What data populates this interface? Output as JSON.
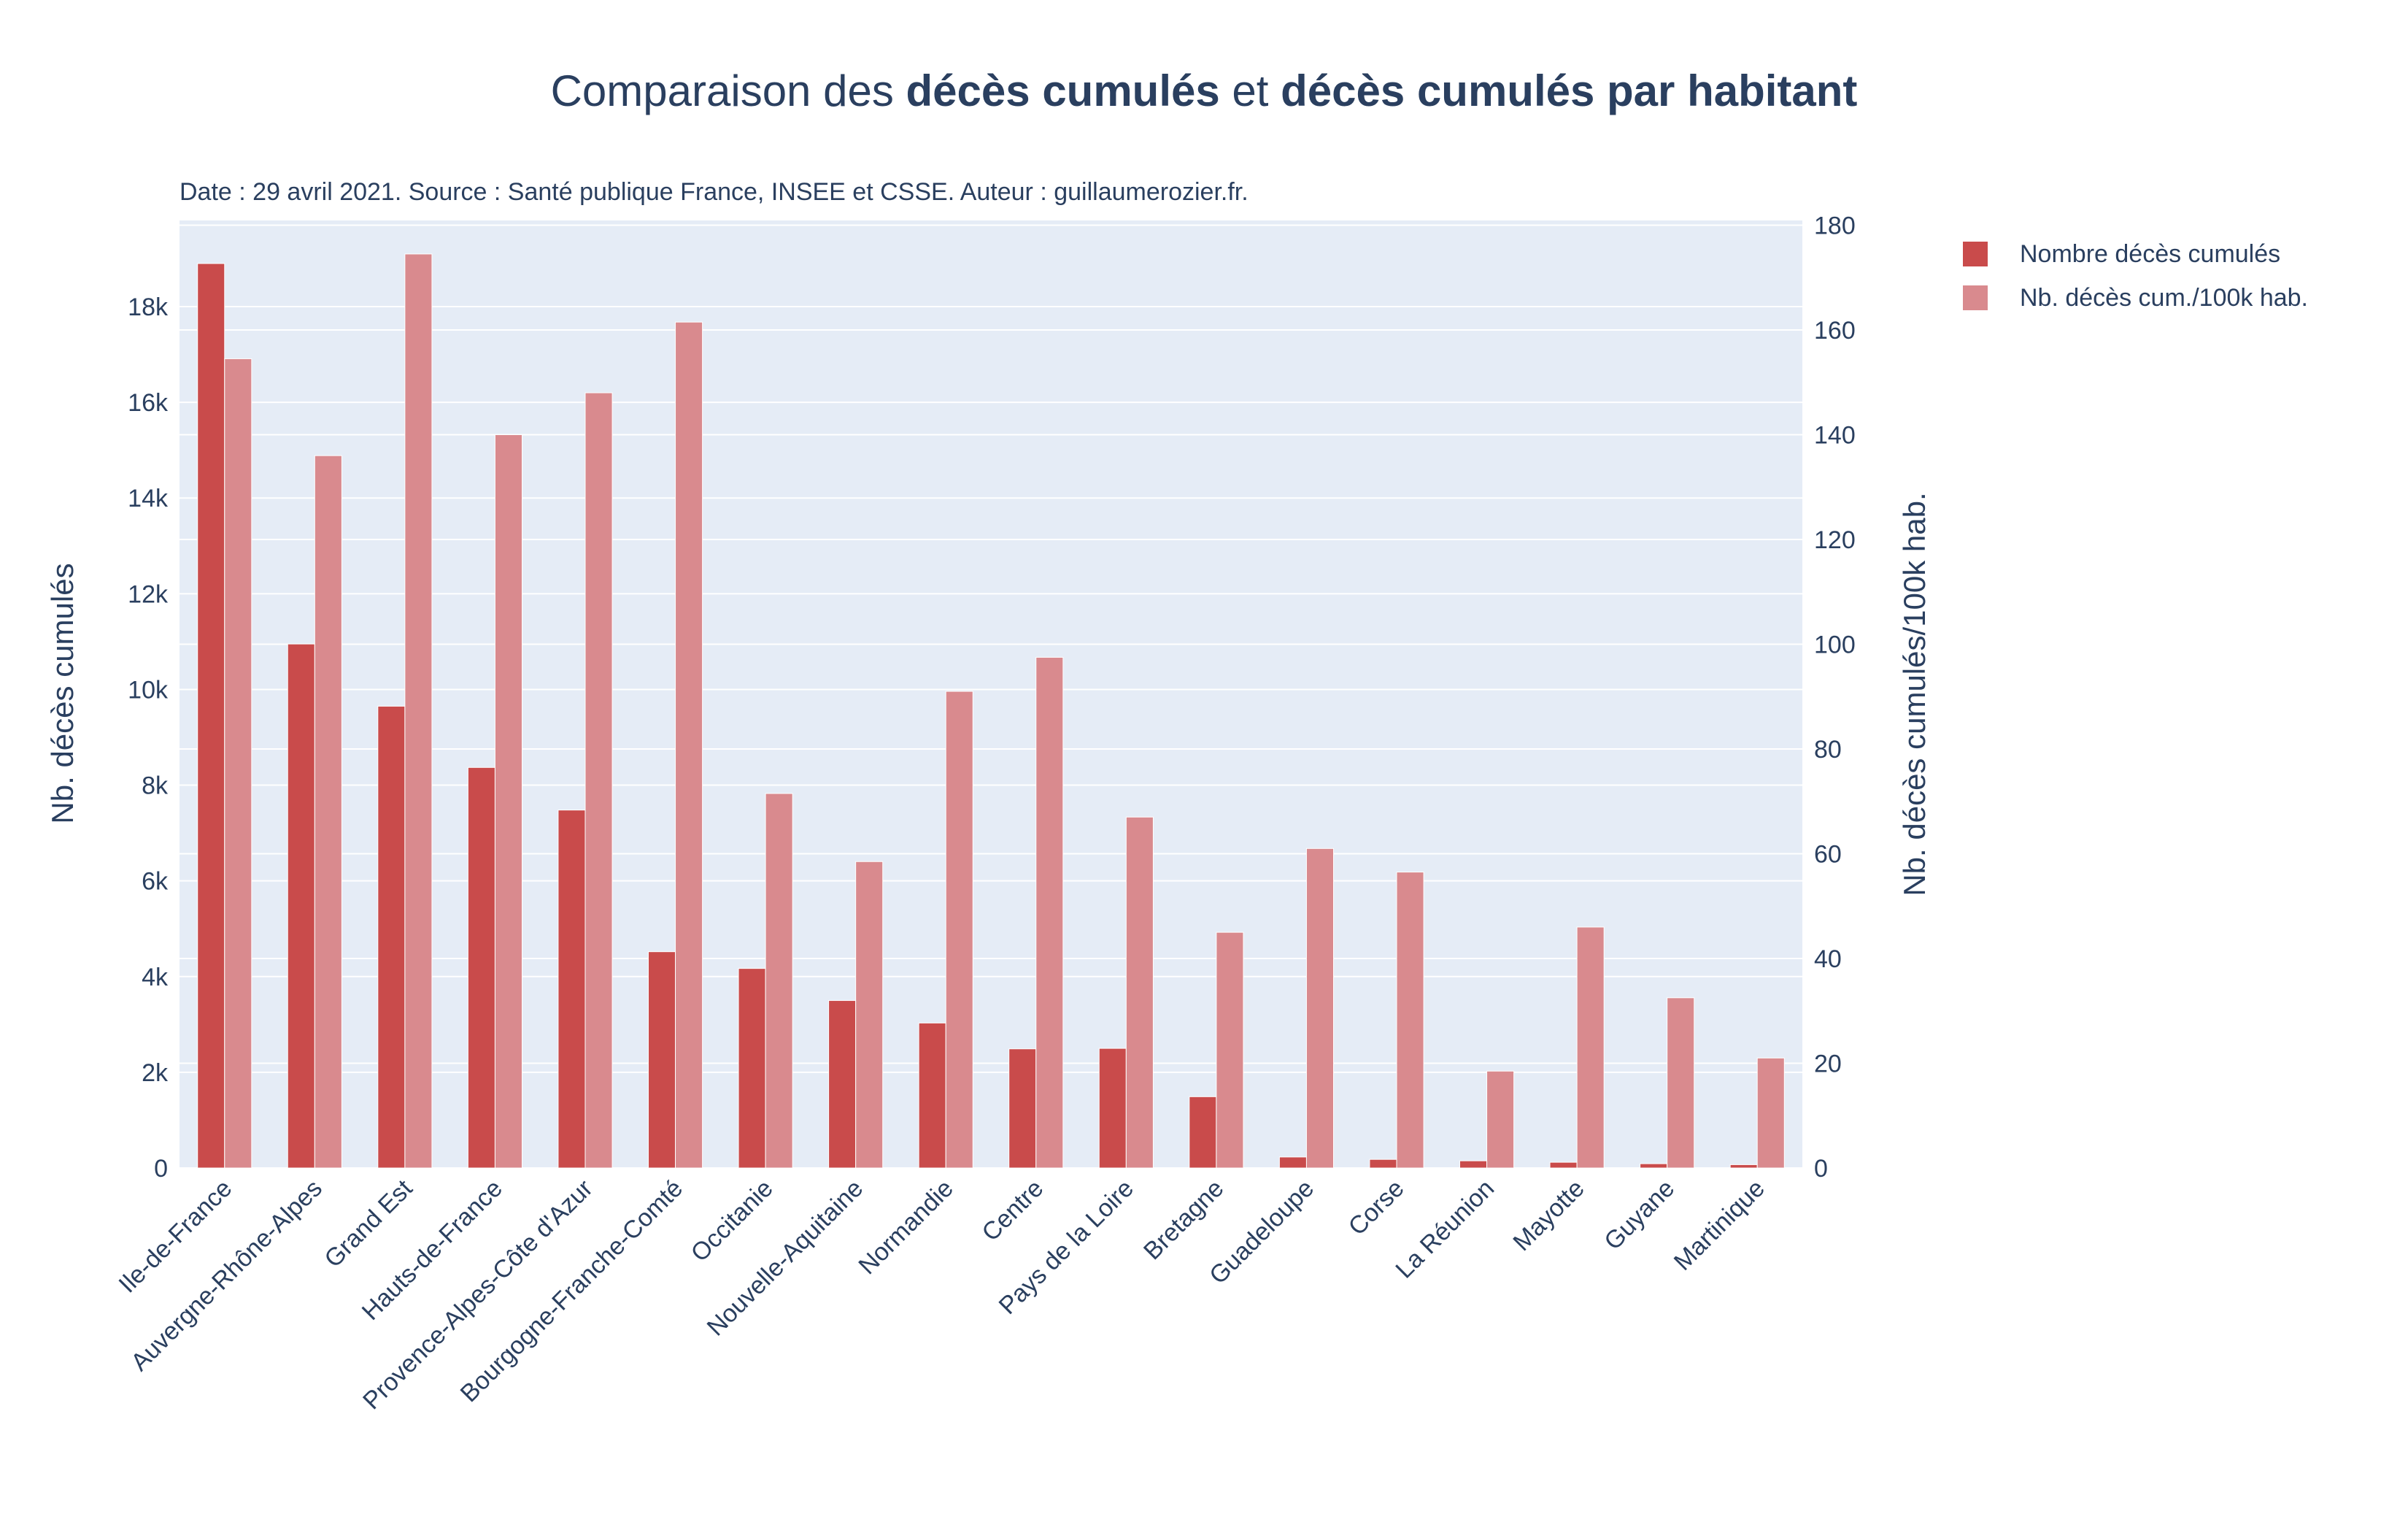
{
  "title_parts": {
    "p1": "Comparaison des ",
    "b1": "décès cumulés",
    "p2": " et ",
    "b2": "décès cumulés par habitant"
  },
  "subtitle": "Date : 29 avril 2021. Source : Santé publique France, INSEE et CSSE. Auteur : guillaumerozier.fr.",
  "legend": [
    {
      "label": "Nombre décès cumulés",
      "color": "#c94b4b"
    },
    {
      "label": "Nb. décès cum./100k hab.",
      "color": "#d98a8e"
    }
  ],
  "chart_data": {
    "type": "bar",
    "categories": [
      "Ile-de-France",
      "Auvergne-Rhône-Alpes",
      "Grand Est",
      "Hauts-de-France",
      "Provence-Alpes-Côte d'Azur",
      "Bourgogne-Franche-Comté",
      "Occitanie",
      "Nouvelle-Aquitaine",
      "Normandie",
      "Centre",
      "Pays de la Loire",
      "Bretagne",
      "Guadeloupe",
      "Corse",
      "La Réunion",
      "Mayotte",
      "Guyane",
      "Martinique"
    ],
    "series": [
      {
        "name": "Nombre décès cumulés",
        "axis": "left",
        "color": "#c94b4b",
        "values": [
          18900,
          10950,
          9650,
          8370,
          7480,
          4520,
          4170,
          3500,
          3030,
          2490,
          2500,
          1490,
          230,
          180,
          150,
          120,
          90,
          70
        ]
      },
      {
        "name": "Nb. décès cum./100k hab.",
        "axis": "right",
        "color": "#d98a8e",
        "values": [
          154.5,
          136,
          174.5,
          140,
          148,
          161.5,
          71.5,
          58.5,
          91,
          97.5,
          67,
          45,
          61,
          56.5,
          18.5,
          46,
          32.5,
          21
        ]
      }
    ],
    "ylabel": "Nb. décès cumulés",
    "ylabel_right": "Nb. décès cumulés/100k hab.",
    "ylim": [
      0,
      19800
    ],
    "ylim_right": [
      0,
      180.9
    ],
    "yticks": [
      0,
      2000,
      4000,
      6000,
      8000,
      10000,
      12000,
      14000,
      16000,
      18000
    ],
    "ytick_labels": [
      "0",
      "2k",
      "4k",
      "6k",
      "8k",
      "10k",
      "12k",
      "14k",
      "16k",
      "18k"
    ],
    "yticks_right": [
      0,
      20,
      40,
      60,
      80,
      100,
      120,
      140,
      160,
      180
    ],
    "ytick_labels_right": [
      "0",
      "20",
      "40",
      "60",
      "80",
      "100",
      "120",
      "140",
      "160",
      "180"
    ],
    "grid": true,
    "legend_position": "top-right"
  }
}
